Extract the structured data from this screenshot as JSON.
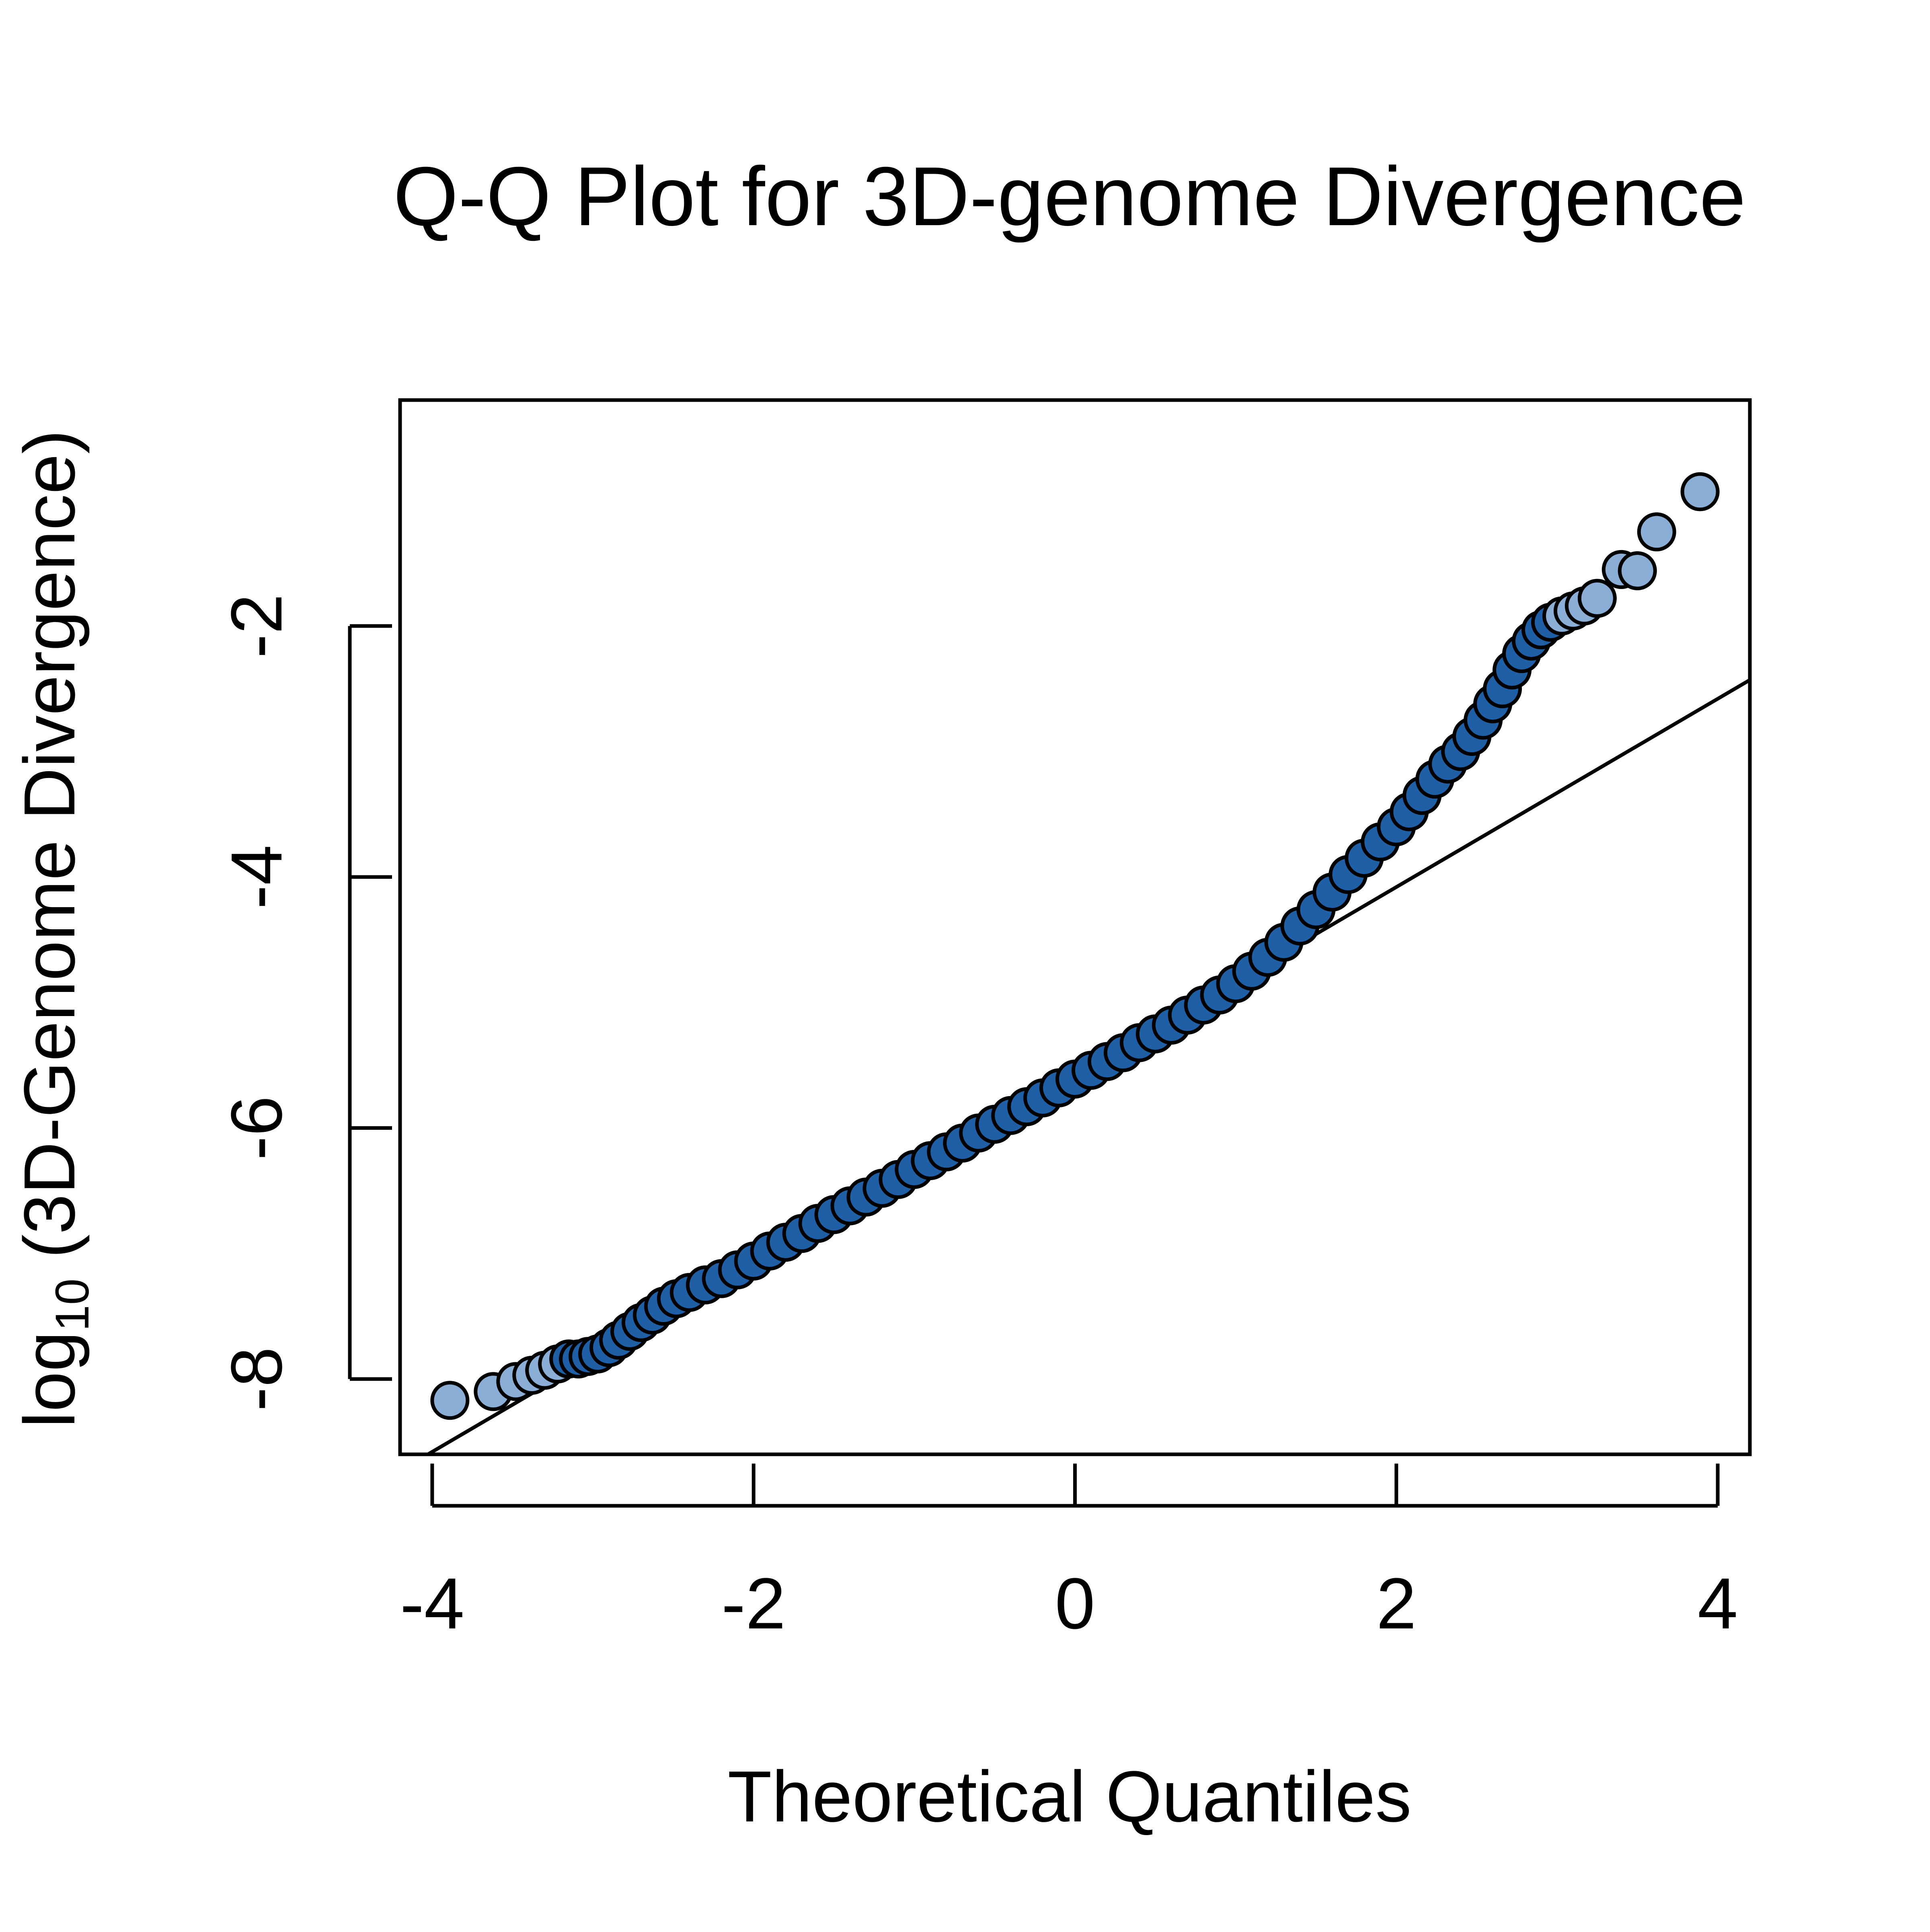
{
  "chart_data": {
    "type": "scatter",
    "title": "Q-Q Plot for 3D-genome Divergence",
    "xlabel": "Theoretical Quantiles",
    "ylabel": {
      "prefix": "log",
      "subscript": "10",
      "suffix": " (3D-Genome Divergence)"
    },
    "xlim": [
      -4.2,
      4.2
    ],
    "ylim": [
      -8.6,
      -0.2
    ],
    "xticks": [
      -4,
      -2,
      0,
      2,
      4
    ],
    "yticks": [
      -8,
      -6,
      -4,
      -2
    ],
    "grid": false,
    "legend": "none",
    "colors": {
      "point_fill": "#1f5fa6",
      "point_fill_light": "#8aaed6",
      "point_stroke": "#000000",
      "line": "#000000",
      "axis": "#000000"
    },
    "reference_line": {
      "slope": 0.75,
      "intercept": -5.58
    },
    "points": [
      {
        "x": -3.89,
        "y": -8.17,
        "light": true
      },
      {
        "x": -3.62,
        "y": -8.1,
        "light": true
      },
      {
        "x": -3.48,
        "y": -8.02,
        "light": true
      },
      {
        "x": -3.38,
        "y": -7.97,
        "light": true
      },
      {
        "x": -3.3,
        "y": -7.93,
        "light": true
      },
      {
        "x": -3.22,
        "y": -7.88,
        "light": true
      },
      {
        "x": -3.15,
        "y": -7.84
      },
      {
        "x": -3.09,
        "y": -7.84
      },
      {
        "x": -3.03,
        "y": -7.82
      },
      {
        "x": -2.97,
        "y": -7.8
      },
      {
        "x": -2.9,
        "y": -7.75
      },
      {
        "x": -2.84,
        "y": -7.69
      },
      {
        "x": -2.77,
        "y": -7.62
      },
      {
        "x": -2.7,
        "y": -7.55
      },
      {
        "x": -2.63,
        "y": -7.49
      },
      {
        "x": -2.56,
        "y": -7.42
      },
      {
        "x": -2.48,
        "y": -7.36
      },
      {
        "x": -2.4,
        "y": -7.31
      },
      {
        "x": -2.3,
        "y": -7.25
      },
      {
        "x": -2.2,
        "y": -7.2
      },
      {
        "x": -2.1,
        "y": -7.13
      },
      {
        "x": -2.0,
        "y": -7.06
      },
      {
        "x": -1.9,
        "y": -6.98
      },
      {
        "x": -1.8,
        "y": -6.91
      },
      {
        "x": -1.7,
        "y": -6.84
      },
      {
        "x": -1.6,
        "y": -6.76
      },
      {
        "x": -1.5,
        "y": -6.69
      },
      {
        "x": -1.4,
        "y": -6.62
      },
      {
        "x": -1.3,
        "y": -6.55
      },
      {
        "x": -1.2,
        "y": -6.48
      },
      {
        "x": -1.1,
        "y": -6.41
      },
      {
        "x": -1.0,
        "y": -6.33
      },
      {
        "x": -0.9,
        "y": -6.26
      },
      {
        "x": -0.8,
        "y": -6.19
      },
      {
        "x": -0.7,
        "y": -6.12
      },
      {
        "x": -0.6,
        "y": -6.04
      },
      {
        "x": -0.5,
        "y": -5.97
      },
      {
        "x": -0.4,
        "y": -5.9
      },
      {
        "x": -0.3,
        "y": -5.83
      },
      {
        "x": -0.2,
        "y": -5.76
      },
      {
        "x": -0.1,
        "y": -5.68
      },
      {
        "x": 0.0,
        "y": -5.61
      },
      {
        "x": 0.1,
        "y": -5.54
      },
      {
        "x": 0.2,
        "y": -5.47
      },
      {
        "x": 0.3,
        "y": -5.4
      },
      {
        "x": 0.4,
        "y": -5.32
      },
      {
        "x": 0.5,
        "y": -5.25
      },
      {
        "x": 0.6,
        "y": -5.18
      },
      {
        "x": 0.7,
        "y": -5.1
      },
      {
        "x": 0.8,
        "y": -5.02
      },
      {
        "x": 0.9,
        "y": -4.94
      },
      {
        "x": 1.0,
        "y": -4.85
      },
      {
        "x": 1.1,
        "y": -4.75
      },
      {
        "x": 1.2,
        "y": -4.64
      },
      {
        "x": 1.3,
        "y": -4.52
      },
      {
        "x": 1.4,
        "y": -4.39
      },
      {
        "x": 1.5,
        "y": -4.26
      },
      {
        "x": 1.6,
        "y": -4.12
      },
      {
        "x": 1.7,
        "y": -3.98
      },
      {
        "x": 1.8,
        "y": -3.85
      },
      {
        "x": 1.9,
        "y": -3.72
      },
      {
        "x": 2.0,
        "y": -3.6
      },
      {
        "x": 2.08,
        "y": -3.48
      },
      {
        "x": 2.16,
        "y": -3.35
      },
      {
        "x": 2.24,
        "y": -3.22
      },
      {
        "x": 2.32,
        "y": -3.1
      },
      {
        "x": 2.4,
        "y": -3.0
      },
      {
        "x": 2.47,
        "y": -2.88
      },
      {
        "x": 2.54,
        "y": -2.75
      },
      {
        "x": 2.6,
        "y": -2.62
      },
      {
        "x": 2.66,
        "y": -2.5
      },
      {
        "x": 2.72,
        "y": -2.35
      },
      {
        "x": 2.78,
        "y": -2.22
      },
      {
        "x": 2.84,
        "y": -2.12
      },
      {
        "x": 2.9,
        "y": -2.03
      },
      {
        "x": 2.96,
        "y": -1.97
      },
      {
        "x": 3.03,
        "y": -1.92,
        "light": true
      },
      {
        "x": 3.1,
        "y": -1.88,
        "light": true
      },
      {
        "x": 3.17,
        "y": -1.84,
        "light": true
      },
      {
        "x": 3.25,
        "y": -1.78,
        "light": true
      },
      {
        "x": 3.4,
        "y": -1.55,
        "light": true
      },
      {
        "x": 3.5,
        "y": -1.56,
        "light": true
      },
      {
        "x": 3.62,
        "y": -1.25,
        "light": true
      },
      {
        "x": 3.89,
        "y": -0.93,
        "light": true
      }
    ]
  }
}
